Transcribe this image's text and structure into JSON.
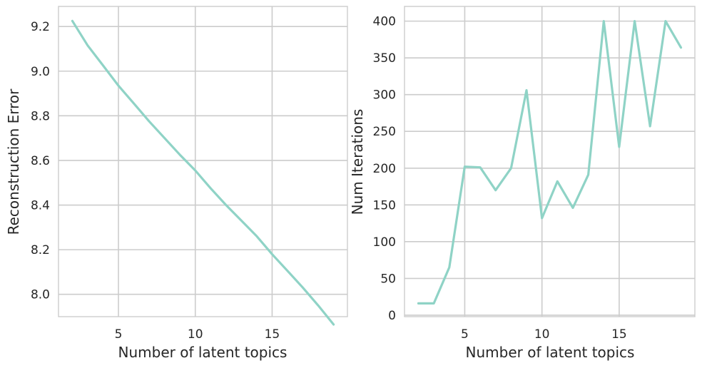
{
  "chart_data": [
    {
      "type": "line",
      "title": "",
      "xlabel": "Number of latent topics",
      "ylabel": "Reconstruction Error",
      "xlim": [
        1.1,
        19.9
      ],
      "ylim": [
        7.9,
        9.29
      ],
      "xticks": [
        5,
        10,
        15
      ],
      "yticks": [
        8.0,
        8.2,
        8.4,
        8.6,
        8.8,
        9.0,
        9.2
      ],
      "ytick_format": 1,
      "grid": true,
      "color": "#8fd3c6",
      "x": [
        2,
        3,
        4,
        5,
        6,
        7,
        8,
        9,
        10,
        11,
        12,
        13,
        14,
        15,
        16,
        17,
        18,
        19
      ],
      "values": [
        9.225,
        9.115,
        9.025,
        8.935,
        8.855,
        8.775,
        8.7,
        8.625,
        8.555,
        8.475,
        8.4,
        8.33,
        8.26,
        8.18,
        8.105,
        8.03,
        7.95,
        7.865
      ]
    },
    {
      "type": "line",
      "title": "",
      "xlabel": "Number of latent topics",
      "ylabel": "Num Iterations",
      "xlim": [
        1.1,
        19.9
      ],
      "ylim": [
        -2,
        420
      ],
      "xticks": [
        5,
        10,
        15
      ],
      "yticks": [
        0,
        50,
        100,
        150,
        200,
        250,
        300,
        350,
        400
      ],
      "ytick_format": 0,
      "grid": true,
      "color": "#8fd3c6",
      "x": [
        2,
        3,
        4,
        5,
        6,
        7,
        8,
        9,
        10,
        11,
        12,
        13,
        14,
        15,
        16,
        17,
        18,
        19
      ],
      "values": [
        16,
        16,
        65,
        202,
        201,
        170,
        200,
        306,
        132,
        182,
        146,
        191,
        400,
        229,
        400,
        257,
        400,
        364
      ]
    }
  ]
}
